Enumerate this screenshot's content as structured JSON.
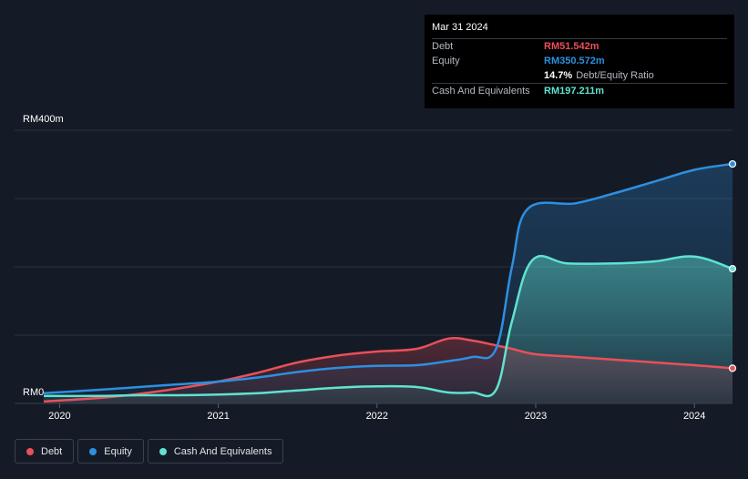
{
  "tooltip": {
    "date": "Mar 31 2024",
    "rows": [
      {
        "label": "Debt",
        "value": "RM51.542m",
        "color": "#e8505b"
      },
      {
        "label": "Equity",
        "value": "RM350.572m",
        "color": "#2d8fe0"
      },
      {
        "label": "",
        "value": "14.7%",
        "suffix": "Debt/Equity Ratio"
      },
      {
        "label": "Cash And Equivalents",
        "value": "RM197.211m",
        "color": "#5fe3cf"
      }
    ]
  },
  "legend": [
    {
      "label": "Debt",
      "color": "#e8505b"
    },
    {
      "label": "Equity",
      "color": "#2d8fe0"
    },
    {
      "label": "Cash And Equivalents",
      "color": "#5fe3cf"
    }
  ],
  "chart_data": {
    "type": "area",
    "y_tick_labels": [
      "RM400m",
      "RM0"
    ],
    "ylim": [
      0,
      400
    ],
    "xlim": [
      2019.9,
      2024.24
    ],
    "x_tick_labels": [
      "2020",
      "2021",
      "2022",
      "2023",
      "2024"
    ],
    "x_tick_values": [
      2020,
      2021,
      2022,
      2023,
      2024
    ],
    "grid": true,
    "legend_position": "bottom-left",
    "series": [
      {
        "name": "Debt",
        "color": "#e8505b",
        "x": [
          2019.9,
          2020.25,
          2020.5,
          2020.75,
          2021.0,
          2021.25,
          2021.5,
          2021.75,
          2022.0,
          2022.25,
          2022.45,
          2022.6,
          2022.75,
          2022.85,
          2023.0,
          2023.25,
          2023.5,
          2023.75,
          2024.0,
          2024.24
        ],
        "values": [
          3,
          8,
          14,
          22,
          32,
          45,
          60,
          70,
          76,
          80,
          95,
          92,
          85,
          80,
          72,
          68,
          64,
          60,
          56,
          51.5
        ]
      },
      {
        "name": "Equity",
        "color": "#2d8fe0",
        "x": [
          2019.9,
          2020.25,
          2020.5,
          2020.75,
          2021.0,
          2021.25,
          2021.5,
          2021.75,
          2022.0,
          2022.25,
          2022.45,
          2022.6,
          2022.75,
          2022.85,
          2022.95,
          2023.25,
          2023.5,
          2023.75,
          2024.0,
          2024.24
        ],
        "values": [
          15,
          20,
          24,
          28,
          32,
          38,
          46,
          52,
          55,
          56,
          62,
          68,
          80,
          200,
          285,
          293,
          308,
          325,
          342,
          350.6
        ]
      },
      {
        "name": "Cash And Equivalents",
        "color": "#5fe3cf",
        "x": [
          2019.9,
          2020.25,
          2020.5,
          2020.75,
          2021.0,
          2021.25,
          2021.5,
          2021.75,
          2022.0,
          2022.25,
          2022.45,
          2022.6,
          2022.75,
          2022.85,
          2022.98,
          2023.2,
          2023.5,
          2023.75,
          2024.0,
          2024.24
        ],
        "values": [
          11,
          11,
          12,
          12,
          13,
          15,
          19,
          23,
          25,
          24,
          16,
          16,
          20,
          120,
          210,
          205,
          205,
          208,
          215,
          197.2
        ]
      }
    ]
  }
}
